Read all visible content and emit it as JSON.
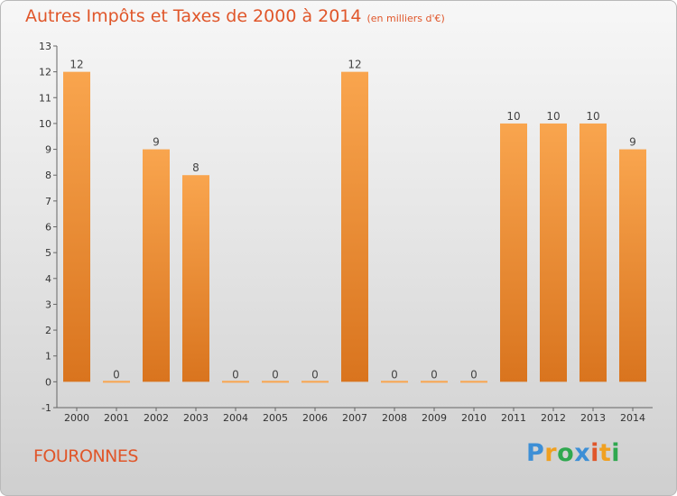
{
  "title": "Autres Impôts et Taxes de 2000 à 2014",
  "subtitle": "(en milliers d'€)",
  "place": "FOURONNES",
  "logo": {
    "p": "P",
    "r": "r",
    "o": "o",
    "x": "x",
    "i1": "i",
    "t": "t",
    "i2": "i"
  },
  "colors": {
    "bar_top": "#f9a54e",
    "bar_bottom": "#d9741e",
    "title": "#e0562a"
  },
  "chart_data": {
    "type": "bar",
    "title": "Autres Impôts et Taxes de 2000 à 2014",
    "subtitle": "(en milliers d'€)",
    "xlabel": "",
    "ylabel": "",
    "categories": [
      "2000",
      "2001",
      "2002",
      "2003",
      "2004",
      "2005",
      "2006",
      "2007",
      "2008",
      "2009",
      "2010",
      "2011",
      "2012",
      "2013",
      "2014"
    ],
    "values": [
      12,
      0,
      9,
      8,
      0,
      0,
      0,
      12,
      0,
      0,
      0,
      10,
      10,
      10,
      9
    ],
    "value_labels": [
      "12",
      "0",
      "9",
      "8",
      "0",
      "0",
      "0",
      "12",
      "0",
      "0",
      "0",
      "10",
      "10",
      "10",
      "9"
    ],
    "ylim": [
      -1,
      13
    ],
    "yticks": [
      -1,
      0,
      1,
      2,
      3,
      4,
      5,
      6,
      7,
      8,
      9,
      10,
      11,
      12,
      13
    ],
    "ytick_labels": [
      "-1",
      "0",
      "1",
      "2",
      "3",
      "4",
      "5",
      "6",
      "7",
      "8",
      "9",
      "10",
      "11",
      "12",
      "13"
    ],
    "grid": false,
    "legend": "none"
  }
}
